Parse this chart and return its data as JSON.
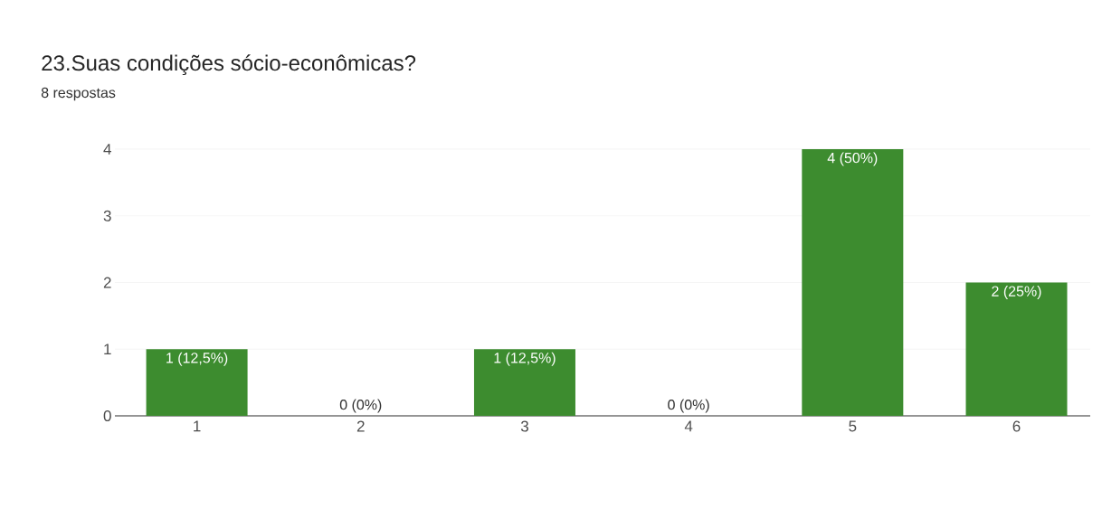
{
  "chart_data": {
    "type": "bar",
    "title": "23.Suas condições sócio-econômicas?",
    "subtitle": "8 respostas",
    "categories": [
      "1",
      "2",
      "3",
      "4",
      "5",
      "6"
    ],
    "values": [
      1,
      0,
      1,
      0,
      4,
      2
    ],
    "value_labels": [
      "1 (12,5%)",
      "0 (0%)",
      "1 (12,5%)",
      "0 (0%)",
      "4 (50%)",
      "2 (25%)"
    ],
    "color": "#3d8c2f",
    "ylim": [
      0,
      4
    ],
    "yticks": [
      0,
      1,
      2,
      3,
      4
    ],
    "grid": "y"
  }
}
